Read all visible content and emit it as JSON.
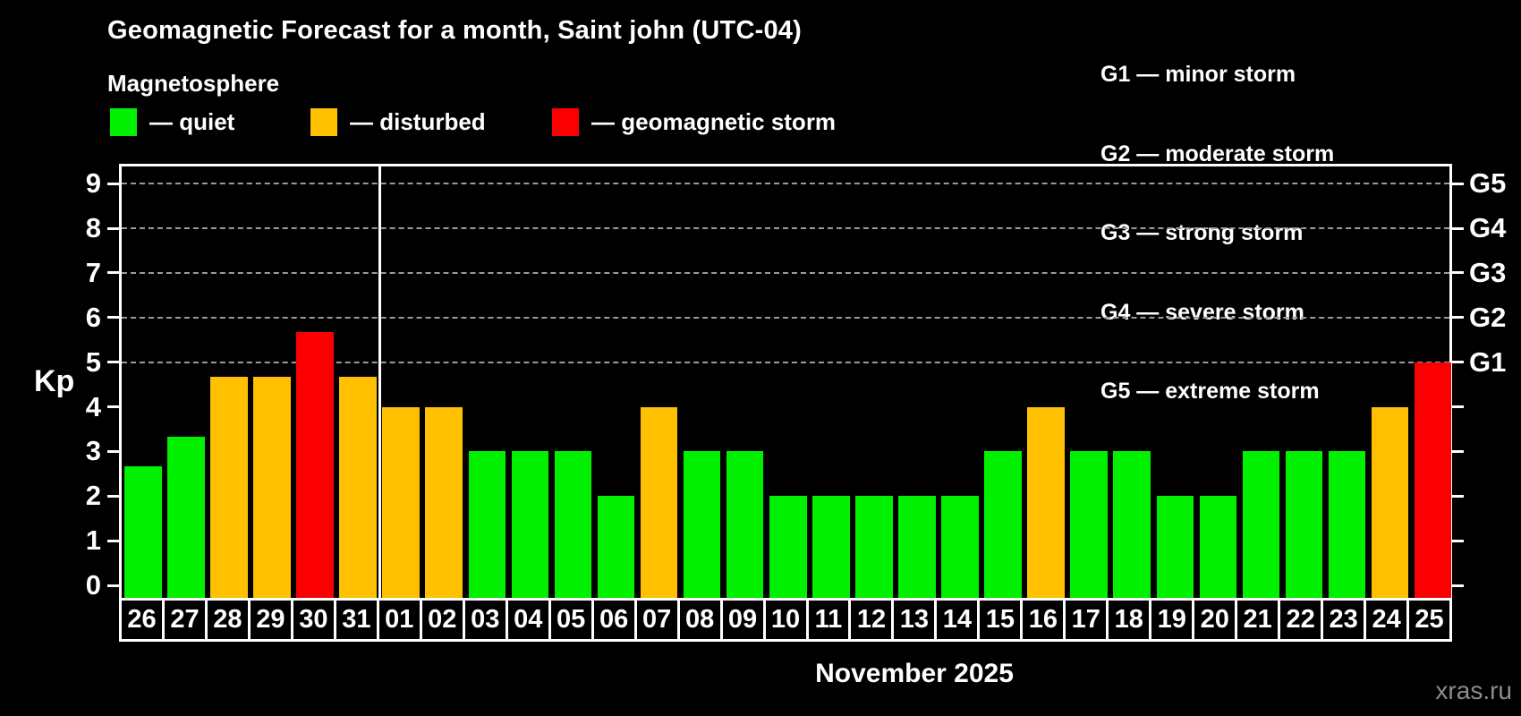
{
  "title": "Geomagnetic Forecast for a month, Saint john (UTC-04)",
  "subtitle": "Magnetosphere",
  "legend": {
    "items": [
      {
        "state": "quiet",
        "label": "— quiet",
        "color": "#00f000"
      },
      {
        "state": "disturbed",
        "label": "— disturbed",
        "color": "#ffc000"
      },
      {
        "state": "storm",
        "label": "— geomagnetic storm",
        "color": "#fa0000"
      }
    ]
  },
  "storm_scale_legend": {
    "lines": [
      "G1 — minor storm",
      "G2 — moderate storm",
      "G3 — strong storm",
      "G4 — severe storm",
      "G5 — extreme storm"
    ]
  },
  "axis": {
    "ylabel": "Kp",
    "xlabel": "November 2025"
  },
  "watermark": "xras.ru",
  "chart_data": {
    "type": "bar",
    "title": "Geomagnetic Forecast for a month, Saint john (UTC-04)",
    "ylabel": "Kp",
    "xlabel": "November 2025",
    "ylim": [
      0,
      9
    ],
    "yticks": [
      0,
      1,
      2,
      3,
      4,
      5,
      6,
      7,
      8,
      9
    ],
    "gridline_kp_levels": [
      5,
      6,
      7,
      8,
      9
    ],
    "grid": "dashed horizontal at storm levels only",
    "right_axis_labels": [
      {
        "kp": 5,
        "label": "G1"
      },
      {
        "kp": 6,
        "label": "G2"
      },
      {
        "kp": 7,
        "label": "G3"
      },
      {
        "kp": 8,
        "label": "G4"
      },
      {
        "kp": 9,
        "label": "G5"
      }
    ],
    "categories": [
      "26",
      "27",
      "28",
      "29",
      "30",
      "31",
      "01",
      "02",
      "03",
      "04",
      "05",
      "06",
      "07",
      "08",
      "09",
      "10",
      "11",
      "12",
      "13",
      "14",
      "15",
      "16",
      "17",
      "18",
      "19",
      "20",
      "21",
      "22",
      "23",
      "24",
      "25"
    ],
    "values": [
      2.67,
      3.33,
      4.67,
      4.67,
      5.67,
      4.67,
      4,
      4,
      3,
      3,
      3,
      2,
      4,
      3,
      3,
      2,
      2,
      2,
      2,
      2,
      3,
      4,
      3,
      3,
      2,
      2,
      3,
      3,
      3,
      4,
      5
    ],
    "states": [
      "quiet",
      "quiet",
      "disturbed",
      "disturbed",
      "storm",
      "disturbed",
      "disturbed",
      "disturbed",
      "quiet",
      "quiet",
      "quiet",
      "quiet",
      "disturbed",
      "quiet",
      "quiet",
      "quiet",
      "quiet",
      "quiet",
      "quiet",
      "quiet",
      "quiet",
      "disturbed",
      "quiet",
      "quiet",
      "quiet",
      "quiet",
      "quiet",
      "quiet",
      "quiet",
      "disturbed",
      "storm"
    ],
    "state_colors": {
      "quiet": "#00f000",
      "disturbed": "#ffc000",
      "storm": "#fa0000"
    },
    "november_start_index": 6,
    "legend_position": "top-left",
    "background_color": "#000000"
  }
}
